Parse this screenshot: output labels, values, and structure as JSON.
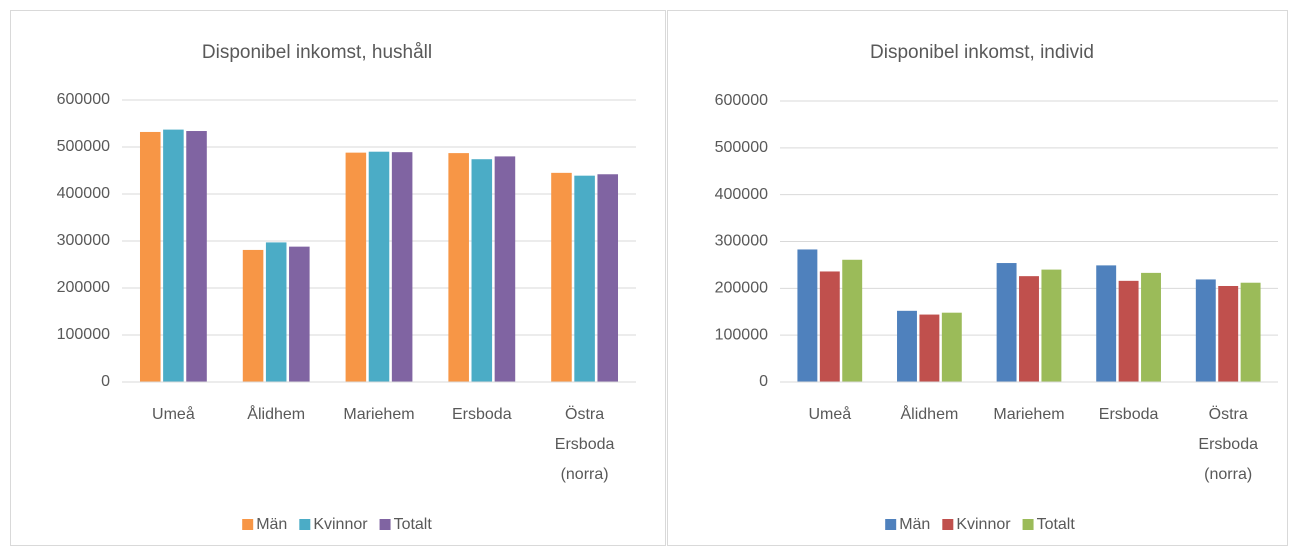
{
  "chart_data": [
    {
      "type": "bar",
      "title": "Disponibel inkomst, hushåll",
      "categories": [
        "Umeå",
        "Ålidhem",
        "Mariehem",
        "Ersboda",
        "Östra Ersboda (norra)"
      ],
      "series": [
        {
          "name": "Män",
          "color": "#f79646",
          "values": [
            532000,
            281000,
            488000,
            487000,
            445000
          ]
        },
        {
          "name": "Kvinnor",
          "color": "#4bacc6",
          "values": [
            537000,
            297000,
            490000,
            474000,
            439000
          ]
        },
        {
          "name": "Totalt",
          "color": "#8064a2",
          "values": [
            534000,
            288000,
            489000,
            480000,
            442000
          ]
        }
      ],
      "ylim": [
        0,
        600000
      ],
      "yticks": [
        0,
        100000,
        200000,
        300000,
        400000,
        500000,
        600000
      ],
      "grid": true,
      "legend": "bottom"
    },
    {
      "type": "bar",
      "title": "Disponibel inkomst, individ",
      "categories": [
        "Umeå",
        "Ålidhem",
        "Mariehem",
        "Ersboda",
        "Östra Ersboda (norra)"
      ],
      "series": [
        {
          "name": "Män",
          "color": "#4f81bd",
          "values": [
            283000,
            152000,
            254000,
            249000,
            219000
          ]
        },
        {
          "name": "Kvinnor",
          "color": "#c0504d",
          "values": [
            236000,
            144000,
            226000,
            216000,
            205000
          ]
        },
        {
          "name": "Totalt",
          "color": "#9bbb59",
          "values": [
            261000,
            148000,
            240000,
            233000,
            212000
          ]
        }
      ],
      "ylim": [
        0,
        600000
      ],
      "yticks": [
        0,
        100000,
        200000,
        300000,
        400000,
        500000,
        600000
      ],
      "grid": true,
      "legend": "bottom"
    }
  ]
}
